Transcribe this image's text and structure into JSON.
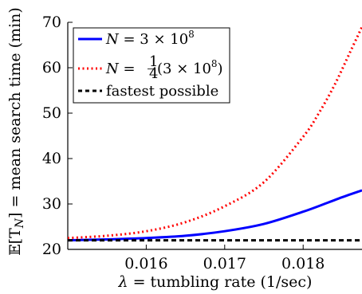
{
  "chart_data": {
    "type": "line",
    "xlabel_math": "λ",
    "xlabel_text": " = tumbling rate (1/sec)",
    "ylabel_math": "𝔼[T",
    "ylabel_sub": "N",
    "ylabel_text": "] = mean search time (min)",
    "xlim": [
      0.015,
      0.01875
    ],
    "ylim": [
      20,
      70
    ],
    "xticks": [
      0.016,
      0.017,
      0.018
    ],
    "xtick_labels": [
      "0.016",
      "0.017",
      "0.018"
    ],
    "yticks": [
      20,
      30,
      40,
      50,
      60,
      70
    ],
    "ytick_labels": [
      "20",
      "30",
      "40",
      "50",
      "60",
      "70"
    ],
    "grid": false,
    "legend_position": "top-left",
    "series": [
      {
        "name": "N = 3 × 10⁸",
        "color": "#0000ff",
        "style": "solid",
        "x": [
          0.015,
          0.0155,
          0.016,
          0.0165,
          0.017,
          0.0175,
          0.018,
          0.0183,
          0.0185,
          0.01875
        ],
        "y": [
          22.0,
          22.2,
          22.5,
          23.0,
          24.0,
          25.6,
          28.3,
          30.2,
          31.5,
          33.0
        ]
      },
      {
        "name": "N = ¼(3 × 10⁸)",
        "color": "#ff0000",
        "style": "dotted",
        "x": [
          0.015,
          0.0155,
          0.016,
          0.0165,
          0.017,
          0.0175,
          0.018,
          0.0182,
          0.0184,
          0.0186,
          0.01875
        ],
        "y": [
          22.5,
          23.0,
          24.0,
          26.0,
          29.5,
          34.8,
          44.8,
          50.0,
          56.2,
          63.5,
          69.0
        ]
      },
      {
        "name": "fastest possible",
        "color": "#000000",
        "style": "dashed",
        "x": [
          0.015,
          0.01875
        ],
        "y": [
          22.0,
          22.0
        ]
      }
    ]
  },
  "legend": {
    "s1_pre": "N",
    "s1_post": " = 3 × 10",
    "s1_sup": "8",
    "s2_pre": "N",
    "s2_mid": " = ",
    "s2_num": "1",
    "s2_den": "4",
    "s2_post": "(3 × 10",
    "s2_sup": "8",
    "s2_close": ")",
    "s3": "fastest possible"
  }
}
